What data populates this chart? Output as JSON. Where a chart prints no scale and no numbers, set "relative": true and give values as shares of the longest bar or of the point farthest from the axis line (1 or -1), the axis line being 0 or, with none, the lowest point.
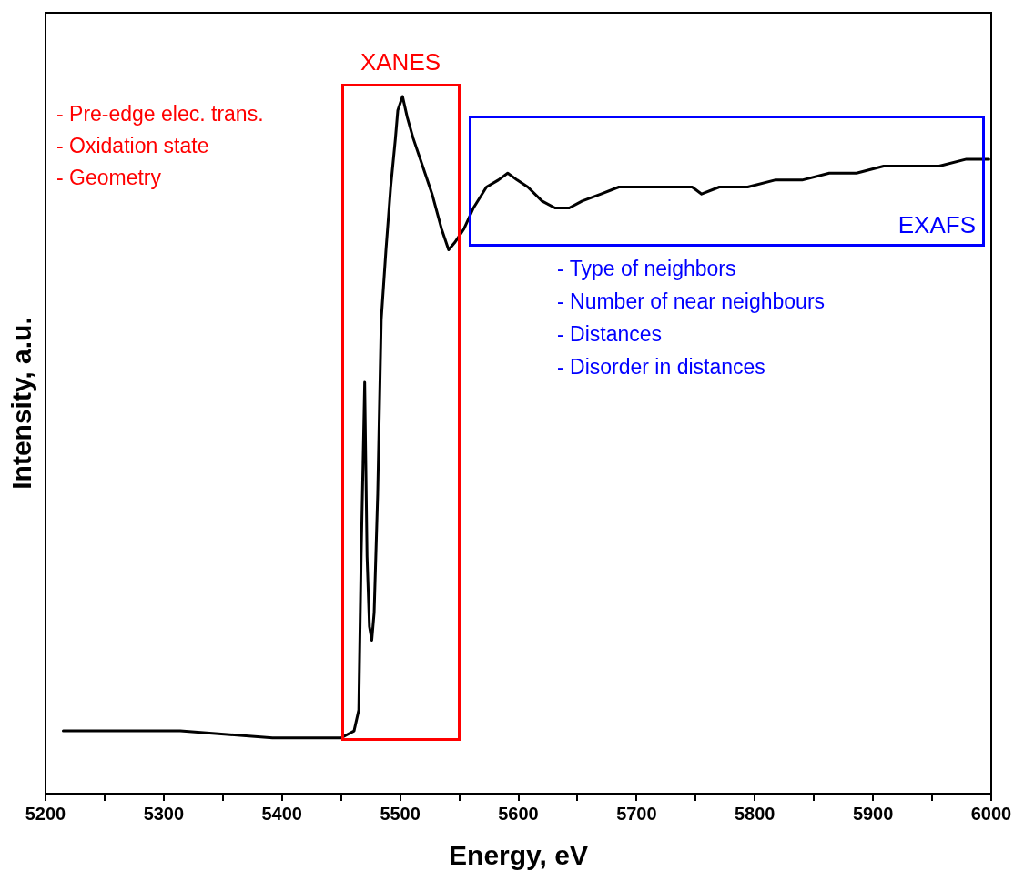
{
  "chart_data": {
    "type": "line",
    "xlabel": "Energy, eV",
    "ylabel": "Intensity, a.u.",
    "relative": true,
    "x": [
      5215,
      5314,
      5392,
      5450,
      5461,
      5465,
      5467,
      5470,
      5472,
      5474,
      5476,
      5478,
      5481,
      5484,
      5488,
      5492,
      5496,
      5498,
      5502,
      5506,
      5511,
      5519,
      5527,
      5535,
      5541,
      5546,
      5554,
      5562,
      5573,
      5583,
      5591,
      5599,
      5608,
      5620,
      5631,
      5643,
      5654,
      5670,
      5685,
      5701,
      5716,
      5732,
      5747,
      5755,
      5770,
      5794,
      5817,
      5840,
      5863,
      5886,
      5909,
      5933,
      5956,
      5979,
      5998
    ],
    "series": [
      {
        "color": "#000000",
        "values": [
          0.09,
          0.09,
          0.08,
          0.08,
          0.09,
          0.12,
          0.34,
          0.59,
          0.34,
          0.24,
          0.22,
          0.26,
          0.43,
          0.68,
          0.78,
          0.87,
          0.94,
          0.98,
          1,
          0.97,
          0.94,
          0.9,
          0.86,
          0.81,
          0.78,
          0.79,
          0.81,
          0.84,
          0.87,
          0.88,
          0.89,
          0.88,
          0.87,
          0.85,
          0.84,
          0.84,
          0.85,
          0.86,
          0.87,
          0.87,
          0.87,
          0.87,
          0.87,
          0.86,
          0.87,
          0.87,
          0.88,
          0.88,
          0.89,
          0.89,
          0.9,
          0.9,
          0.9,
          0.91,
          0.91
        ]
      }
    ],
    "xlim": [
      5200,
      6000
    ],
    "xticks": [
      5200,
      {
        "value": 5250,
        "label": null
      },
      5300,
      {
        "value": 5350,
        "label": null
      },
      5400,
      {
        "value": 5450,
        "label": null
      },
      5500,
      {
        "value": 5550,
        "label": null
      },
      5600,
      {
        "value": 5650,
        "label": null
      },
      5700,
      {
        "value": 5750,
        "label": null
      },
      5800,
      {
        "value": 5850,
        "label": null
      },
      5900,
      {
        "value": 5950,
        "label": null
      },
      6000
    ],
    "annotations": [
      "XANES",
      "- Pre-edge elec. trans.",
      "- Oxidation state",
      "- Geometry",
      "EXAFS",
      "- Type of neighbors",
      "- Number of near neighbours",
      "- Distances",
      "- Disorder in distances"
    ],
    "grid": false,
    "legend": false,
    "marker": "none",
    "line_style": "solid"
  }
}
